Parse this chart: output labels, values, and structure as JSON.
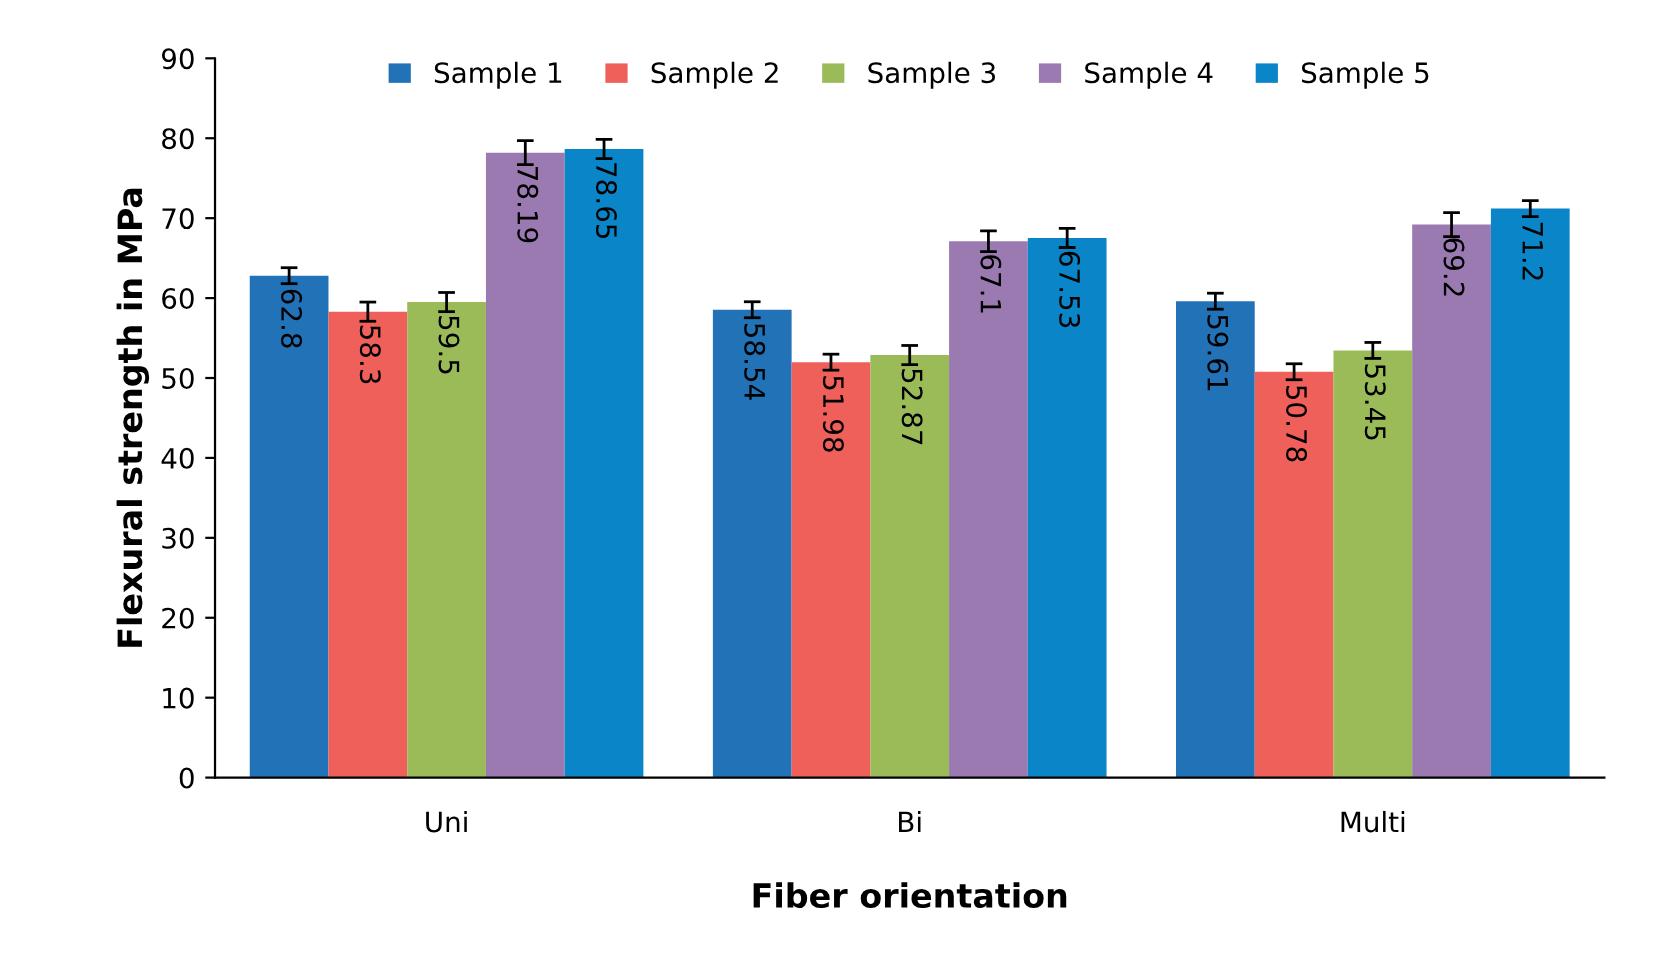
{
  "chart_data": {
    "type": "bar",
    "xlabel": "Fiber orientation",
    "ylabel": "Flexural strength in MPa",
    "categories": [
      "Uni",
      "Bi",
      "Multi"
    ],
    "series": [
      {
        "name": "Sample 1",
        "color": "#2272b8",
        "values": [
          62.8,
          58.54,
          59.61
        ],
        "errors": [
          1.0,
          1.0,
          1.0
        ]
      },
      {
        "name": "Sample 2",
        "color": "#f0605a",
        "values": [
          58.3,
          51.98,
          50.78
        ],
        "errors": [
          1.2,
          1.0,
          1.0
        ]
      },
      {
        "name": "Sample 3",
        "color": "#9bbb59",
        "values": [
          59.5,
          52.87,
          53.45
        ],
        "errors": [
          1.2,
          1.2,
          1.0
        ]
      },
      {
        "name": "Sample 4",
        "color": "#9a7ab0",
        "values": [
          78.19,
          67.1,
          69.2
        ],
        "errors": [
          1.5,
          1.3,
          1.5
        ]
      },
      {
        "name": "Sample 5",
        "color": "#0a86c8",
        "values": [
          78.65,
          67.53,
          71.2
        ],
        "errors": [
          1.2,
          1.2,
          1.0
        ]
      }
    ],
    "ylim": [
      0,
      90
    ],
    "yticks": [
      0,
      10,
      20,
      30,
      40,
      50,
      60,
      70,
      80,
      90
    ],
    "data_labels": true,
    "grid": false,
    "legend": "top"
  }
}
